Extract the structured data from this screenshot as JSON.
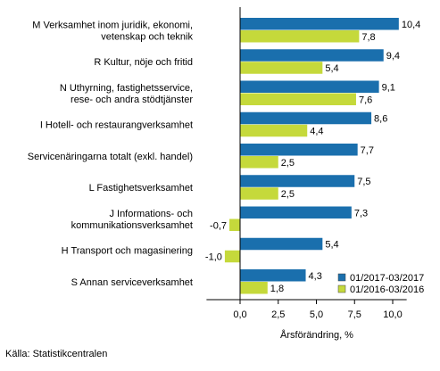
{
  "chart_data": {
    "type": "bar",
    "orientation": "horizontal",
    "categories": [
      [
        "M Verksamhet inom juridik, ekonomi,",
        "vetenskap och teknik"
      ],
      [
        "R Kultur, nöje och fritid"
      ],
      [
        "N Uthyrning, fastighetsservice,",
        "rese- och andra stödtjänster"
      ],
      [
        "I Hotell- och restaurangverksamhet"
      ],
      [
        "Servicenäringarna totalt (exkl. handel)"
      ],
      [
        "L Fastighetsverksamhet"
      ],
      [
        "J Informations- och",
        "kommunikationsverksamhet"
      ],
      [
        "H Transport och magasinering"
      ],
      [
        "S Annan serviceverksamhet"
      ]
    ],
    "series": [
      {
        "name": "01/2017-03/2017",
        "color": "#1a6fad",
        "values": [
          10.4,
          9.4,
          9.1,
          8.6,
          7.7,
          7.5,
          7.3,
          5.4,
          4.3
        ],
        "labels": [
          "10,4",
          "9,4",
          "9,1",
          "8,6",
          "7,7",
          "7,5",
          "7,3",
          "5,4",
          "4,3"
        ]
      },
      {
        "name": "01/2016-03/2016",
        "color": "#c5d93b",
        "values": [
          7.8,
          5.4,
          7.6,
          4.4,
          2.5,
          2.5,
          -0.7,
          -1.0,
          1.8
        ],
        "labels": [
          "7,8",
          "5,4",
          "7,6",
          "4,4",
          "2,5",
          "2,5",
          "-0,7",
          "-1,0",
          "1,8"
        ]
      }
    ],
    "xlim": [
      -2.2,
      11.5
    ],
    "xticks": [
      0,
      2.5,
      5,
      7.5,
      10
    ],
    "xtick_labels": [
      "0,0",
      "2,5",
      "5,0",
      "7,5",
      "10,0"
    ],
    "xlabel": "Årsförändring, %",
    "legend_position": "bottom-right",
    "grid": false
  },
  "source": "Källa: Statistikcentralen"
}
